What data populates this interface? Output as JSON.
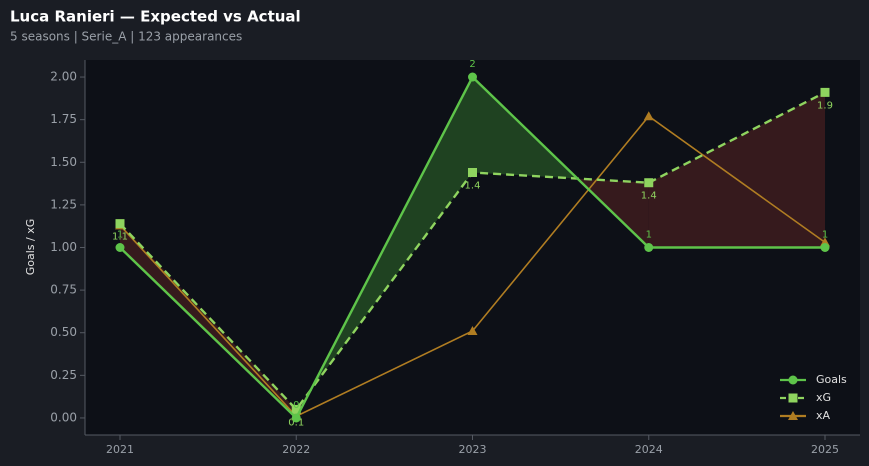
{
  "chart_data": {
    "type": "line",
    "title": "Luca Ranieri — Expected vs Actual",
    "subtitle": "5 seasons | Serie_A | 123 appearances",
    "y_label": "Goals / xG",
    "categories": [
      "2021",
      "2022",
      "2023",
      "2024",
      "2025"
    ],
    "series": [
      {
        "name": "Goals",
        "color": "#5ec44a",
        "marker": "circle",
        "dash": false,
        "values": [
          1,
          0,
          2,
          1,
          1
        ],
        "value_labels": [
          "1",
          "0",
          "2",
          "1",
          "1"
        ]
      },
      {
        "name": "xG",
        "color": "#8fd45f",
        "marker": "square",
        "dash": true,
        "values": [
          1.14,
          0.05,
          1.44,
          1.38,
          1.91
        ],
        "value_labels": [
          "1.1",
          "0.1",
          "1.4",
          "1.4",
          "1.9"
        ]
      },
      {
        "name": "xA",
        "color": "#b07d22",
        "marker": "triangle",
        "dash": false,
        "values": [
          1.13,
          0.01,
          0.51,
          1.77,
          1.03
        ]
      }
    ],
    "fill_colors": {
      "over": "#2f6b2a",
      "under": "#5a2222"
    },
    "ylim": [
      -0.1,
      2.1
    ],
    "yticks": [
      {
        "value": 0,
        "label": "0.00"
      },
      {
        "value": 0.25,
        "label": "0.25"
      },
      {
        "value": 0.5,
        "label": "0.50"
      },
      {
        "value": 0.75,
        "label": "0.75"
      },
      {
        "value": 1,
        "label": "1.00"
      },
      {
        "value": 1.25,
        "label": "1.25"
      },
      {
        "value": 1.5,
        "label": "1.50"
      },
      {
        "value": 1.75,
        "label": "1.75"
      },
      {
        "value": 2,
        "label": "2.00"
      }
    ],
    "legend": "lower right"
  }
}
